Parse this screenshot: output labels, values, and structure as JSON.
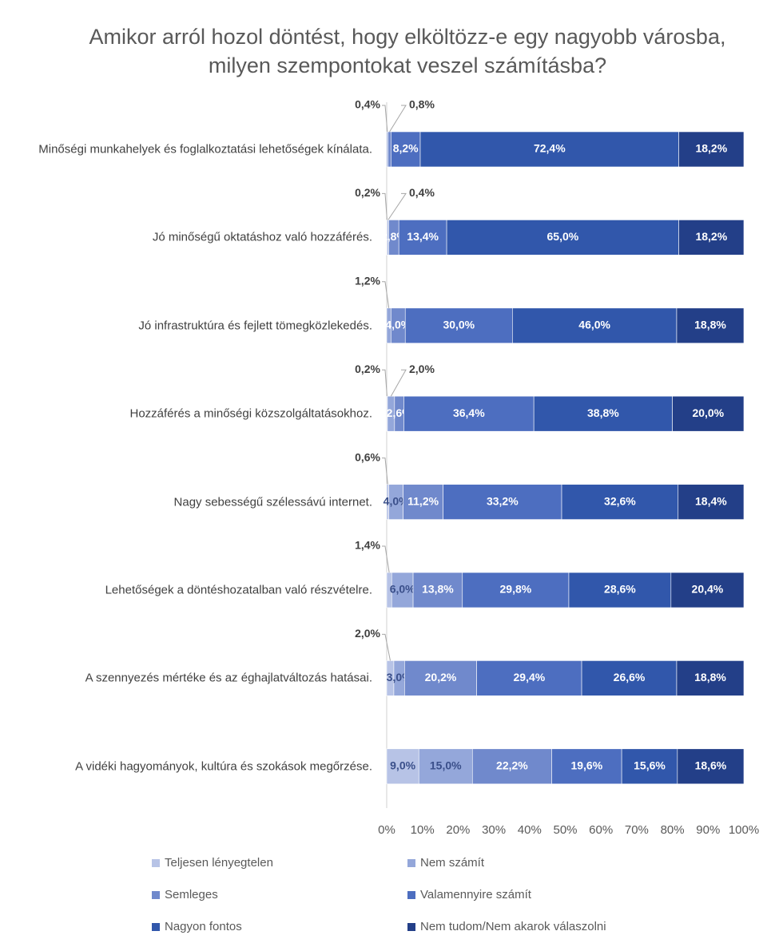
{
  "chart_data": {
    "type": "stacked-bar-horizontal",
    "title": "Amikor arról hozol döntést, hogy elköltözz-e egy nagyobb városba, milyen szempontokat veszel számításba?",
    "categories": [
      "Minőségi munkahelyek és foglalkoztatási lehetőségek kínálata.",
      "Jó minőségű oktatáshoz való hozzáférés.",
      "Jó infrastruktúra és fejlett tömegközlekedés.",
      "Hozzáférés a minőségi közszolgáltatásokhoz.",
      "Nagy sebességű szélessávú internet.",
      "Lehetőségek a döntéshozatalban való részvételre.",
      "A szennyezés mértéke és az éghajlatváltozás hatásai.",
      "A vidéki hagyományok, kultúra és szokások megőrzése."
    ],
    "series": [
      {
        "name": "Teljesen lényegtelen",
        "color": "#b7c3e6",
        "values": [
          null,
          0.2,
          null,
          0.2,
          0.6,
          1.4,
          2.0,
          9.0
        ],
        "value_labels": [
          null,
          "0,2%",
          null,
          "0,2%",
          "0,6%",
          "1,4%",
          "2,0%",
          "9,0%"
        ]
      },
      {
        "name": "Nem számít",
        "color": "#94a7da",
        "values": [
          0.4,
          0.4,
          1.2,
          2.0,
          4.0,
          6.0,
          3.0,
          15.0
        ],
        "value_labels": [
          "0,4%",
          "0,4%",
          "1,2%",
          "2,0%",
          "4,0%",
          "6,0%",
          "3,0%",
          "15,0%"
        ]
      },
      {
        "name": "Semleges",
        "color": "#7089cc",
        "values": [
          0.8,
          2.8,
          4.0,
          2.6,
          11.2,
          13.8,
          20.2,
          22.2
        ],
        "value_labels": [
          "0,8%",
          "2,8%",
          "4,0%",
          "2,6%",
          "11,2%",
          "13,8%",
          "20,2%",
          "22,2%"
        ]
      },
      {
        "name": "Valamennyire számít",
        "color": "#4d6ec0",
        "values": [
          8.2,
          13.4,
          30.0,
          36.4,
          33.2,
          29.8,
          29.4,
          19.6
        ],
        "value_labels": [
          "8,2%",
          "13,4%",
          "30,0%",
          "36,4%",
          "33,2%",
          "29,8%",
          "29,4%",
          "19,6%"
        ]
      },
      {
        "name": "Nagyon fontos",
        "color": "#3157ab",
        "values": [
          72.4,
          65.0,
          46.0,
          38.8,
          32.6,
          28.6,
          26.6,
          15.6
        ],
        "value_labels": [
          "72,4%",
          "65,0%",
          "46,0%",
          "38,8%",
          "32,6%",
          "28,6%",
          "26,6%",
          "15,6%"
        ]
      },
      {
        "name": "Nem tudom/Nem akarok válaszolni",
        "color": "#233f88",
        "values": [
          18.2,
          18.2,
          18.8,
          20.0,
          18.4,
          20.4,
          18.8,
          18.6
        ],
        "value_labels": [
          "18,2%",
          "18,2%",
          "18,8%",
          "20,0%",
          "18,4%",
          "20,4%",
          "18,8%",
          "18,6%"
        ]
      }
    ],
    "xlim": [
      0,
      100
    ],
    "xticks": [
      {
        "value": 0,
        "label": "0%"
      },
      {
        "value": 10,
        "label": "10%"
      },
      {
        "value": 20,
        "label": "20%"
      },
      {
        "value": 30,
        "label": "30%"
      },
      {
        "value": 40,
        "label": "40%"
      },
      {
        "value": 50,
        "label": "50%"
      },
      {
        "value": 60,
        "label": "60%"
      },
      {
        "value": 70,
        "label": "70%"
      },
      {
        "value": 80,
        "label": "80%"
      },
      {
        "value": 90,
        "label": "90%"
      },
      {
        "value": 100,
        "label": "100%"
      }
    ],
    "legend": "bottom"
  }
}
